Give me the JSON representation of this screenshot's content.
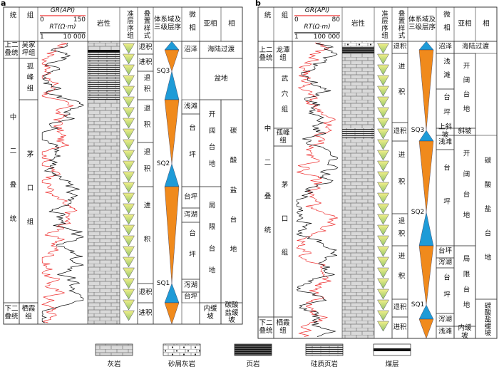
{
  "panels": [
    {
      "label": "a",
      "headers": {
        "series": "统",
        "formation": "组",
        "gr": "GR(API)",
        "rt": "RT(Ω·m)",
        "lithology": "岩性",
        "parasequence": "准层序组",
        "stacking": "叠置样式",
        "systems_tract": "体系域及三级层序",
        "microfacies": "微相",
        "subfacies": "亚相",
        "facies": "相"
      },
      "gr_range": [
        0,
        150
      ],
      "rt_range": [
        1,
        {
          "value": 10000,
          "label": "10 000"
        }
      ],
      "series": [
        "上二叠统",
        "中二叠统",
        "下二叠统"
      ],
      "formations": [
        "吴家坪组",
        "孤峰组",
        "茅口组",
        "栖霞组"
      ],
      "stacking": [
        "退积",
        "进积",
        "退积",
        "退积",
        "退积",
        "进积",
        "退积",
        "进积"
      ],
      "sequences": [
        "SQ3",
        "SQ2",
        "SQ1"
      ],
      "microfacies": [
        "沼泽",
        "浅滩",
        "台坪",
        "台坪",
        "泻湖",
        "台坪",
        "泻湖",
        "台坪"
      ],
      "subfacies": [
        "海陆过渡",
        "盆地",
        "开阔台地",
        "局限台地",
        "内缓坡"
      ],
      "facies": [
        "碳酸盐台地",
        "碳酸盐缓坡"
      ]
    },
    {
      "label": "b",
      "headers": {
        "series": "统",
        "formation": "组",
        "gr": "GR(API)",
        "rt": "RT(Ω·m)",
        "lithology": "岩性",
        "parasequence": "准层序组",
        "stacking": "叠置样式",
        "systems_tract": "体系域及三级层序",
        "microfacies": "微相",
        "subfacies": "亚相",
        "facies": "相"
      },
      "gr_range": [
        0,
        80
      ],
      "rt_range": [
        1,
        {
          "value": 100000,
          "label": "100 000"
        }
      ],
      "series": [
        "上二叠统",
        "中二叠统",
        "下二叠统"
      ],
      "formations": [
        "龙潭组",
        "武穴组",
        "孤峰组",
        "茅口组",
        "栖霞组"
      ],
      "stacking": [
        "退积",
        "进积",
        "退积",
        "进积",
        "退积",
        "进积",
        "退积",
        "进积"
      ],
      "sequences": [
        "SQ3",
        "SQ2",
        "SQ1"
      ],
      "microfacies": [
        "沼泽",
        "浅滩",
        "台坪",
        "上斜坡",
        "浅滩",
        "台坪",
        "台坪",
        "泻湖",
        "台坪",
        "泻湖",
        "浅滩"
      ],
      "subfacies": [
        "海陆过渡",
        "开阔台地",
        "斜坡",
        "开阔台地",
        "局限台地",
        "内缓坡"
      ],
      "facies": [
        "碳酸盐台地",
        "碳酸盐缓坡"
      ]
    }
  ],
  "legend": [
    "灰岩",
    "砂屑灰岩",
    "页岩",
    "硅质页岩",
    "煤层"
  ]
}
